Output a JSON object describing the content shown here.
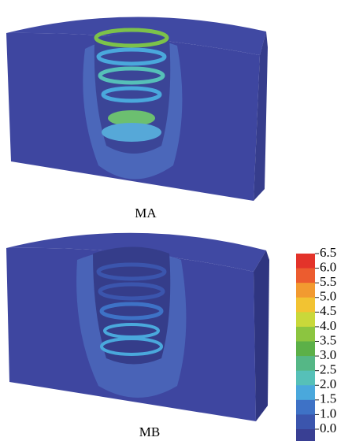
{
  "panels": [
    {
      "label": "MA"
    },
    {
      "label": "MB"
    }
  ],
  "colorbar": {
    "labels": [
      "6.5",
      "6.0",
      "5.5",
      "5.0",
      "4.5",
      "4.0",
      "3.5",
      "3.0",
      "2.5",
      "2.0",
      "1.5",
      "1.0",
      "0.0"
    ],
    "colors": [
      "#e3332a",
      "#ec5c2f",
      "#f29a30",
      "#f2c332",
      "#c9d83a",
      "#8cc540",
      "#5cb048",
      "#55b786",
      "#56c0b8",
      "#4aa8dc",
      "#3e72c6",
      "#3b55ad",
      "#393f93"
    ]
  }
}
